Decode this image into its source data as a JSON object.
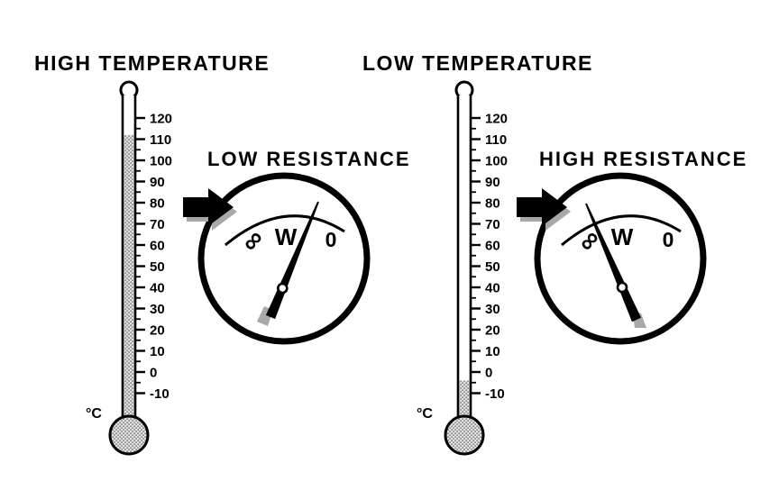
{
  "background": "#ffffff",
  "ink": "#000000",
  "stipple_color": "#8f8f8f",
  "shadow_color": "#a8a8a8",
  "scale_labels": [
    "120",
    "110",
    "100",
    "90",
    "80",
    "70",
    "60",
    "50",
    "40",
    "30",
    "20",
    "10",
    "0",
    "-10"
  ],
  "left": {
    "thermometer_title": "HIGH TEMPERATURE",
    "unit_label": "°C",
    "mercury_level": 112,
    "meter_title": "LOW RESISTANCE",
    "meter_left_label": "∞",
    "meter_center_label": "W",
    "meter_right_label": "0",
    "needle_points_to": "0"
  },
  "right": {
    "thermometer_title": "LOW TEMPERATURE",
    "unit_label": "°C",
    "mercury_level": -4,
    "meter_title": "HIGH RESISTANCE",
    "meter_left_label": "∞",
    "meter_center_label": "W",
    "meter_right_label": "0",
    "needle_points_to": "∞"
  }
}
